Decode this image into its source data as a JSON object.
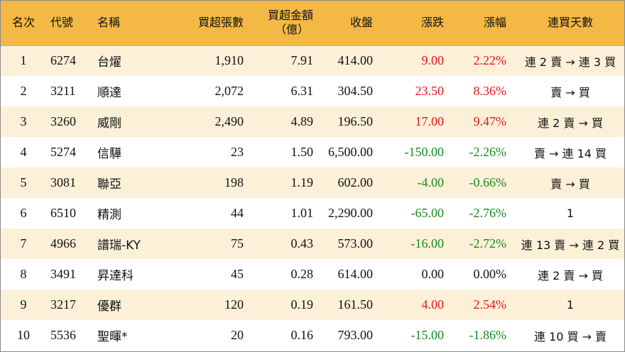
{
  "headers": {
    "rank": "名次",
    "code": "代號",
    "name": "名稱",
    "volume": "買超張數",
    "amount_line1": "買超金額",
    "amount_line2": "（億）",
    "close": "收盤",
    "change": "漲跌",
    "pct": "漲幅",
    "days": "連買天數"
  },
  "colors": {
    "header_bg": "#f3b944",
    "odd_row": "#fcf1d8",
    "up": "#e8151b",
    "down": "#168a1e"
  },
  "rows": [
    {
      "rank": "1",
      "code": "6274",
      "name": "台燿",
      "volume": "1,910",
      "amount": "7.91",
      "close": "414.00",
      "change": "9.00",
      "pct": "2.22%",
      "days": "連 2 賣 → 連 3 買",
      "dir": "up"
    },
    {
      "rank": "2",
      "code": "3211",
      "name": "順達",
      "volume": "2,072",
      "amount": "6.31",
      "close": "304.50",
      "change": "23.50",
      "pct": "8.36%",
      "days": "賣 → 買",
      "dir": "up"
    },
    {
      "rank": "3",
      "code": "3260",
      "name": "威剛",
      "volume": "2,490",
      "amount": "4.89",
      "close": "196.50",
      "change": "17.00",
      "pct": "9.47%",
      "days": "連 2 賣 → 買",
      "dir": "up"
    },
    {
      "rank": "4",
      "code": "5274",
      "name": "信驊",
      "volume": "23",
      "amount": "1.50",
      "close": "6,500.00",
      "change": "-150.00",
      "pct": "-2.26%",
      "days": "賣 → 連 14 買",
      "dir": "down"
    },
    {
      "rank": "5",
      "code": "3081",
      "name": "聯亞",
      "volume": "198",
      "amount": "1.19",
      "close": "602.00",
      "change": "-4.00",
      "pct": "-0.66%",
      "days": "賣 → 買",
      "dir": "down"
    },
    {
      "rank": "6",
      "code": "6510",
      "name": "精測",
      "volume": "44",
      "amount": "1.01",
      "close": "2,290.00",
      "change": "-65.00",
      "pct": "-2.76%",
      "days": "1",
      "dir": "down"
    },
    {
      "rank": "7",
      "code": "4966",
      "name": "譜瑞-KY",
      "volume": "75",
      "amount": "0.43",
      "close": "573.00",
      "change": "-16.00",
      "pct": "-2.72%",
      "days": "連 13 賣 → 連 2 買",
      "dir": "down"
    },
    {
      "rank": "8",
      "code": "3491",
      "name": "昇達科",
      "volume": "45",
      "amount": "0.28",
      "close": "614.00",
      "change": "0.00",
      "pct": "0.00%",
      "days": "連 2 賣 → 買",
      "dir": "flat"
    },
    {
      "rank": "9",
      "code": "3217",
      "name": "優群",
      "volume": "120",
      "amount": "0.19",
      "close": "161.50",
      "change": "4.00",
      "pct": "2.54%",
      "days": "1",
      "dir": "up"
    },
    {
      "rank": "10",
      "code": "5536",
      "name": "聖暉*",
      "volume": "20",
      "amount": "0.16",
      "close": "793.00",
      "change": "-15.00",
      "pct": "-1.86%",
      "days": "連 10 買 → 賣",
      "dir": "down"
    }
  ]
}
